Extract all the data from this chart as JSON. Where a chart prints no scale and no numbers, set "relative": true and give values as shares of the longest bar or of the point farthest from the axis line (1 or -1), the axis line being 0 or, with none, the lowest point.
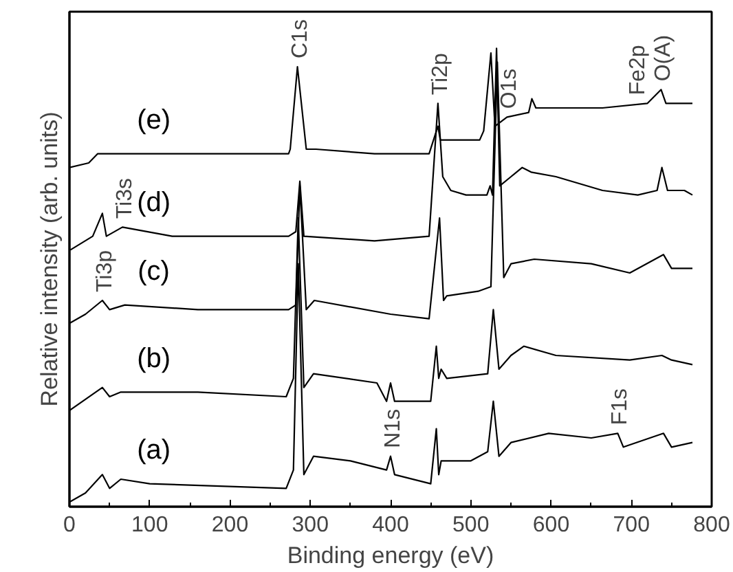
{
  "chart_data": {
    "type": "line",
    "relative": true,
    "xlabel": "Binding energy (eV)",
    "ylabel": "Relative intensity (arb. units)",
    "xlim": [
      0,
      800
    ],
    "xticks": [
      0,
      100,
      200,
      300,
      400,
      500,
      600,
      700,
      800
    ],
    "grid": false,
    "marker": "none",
    "line_style": "solid",
    "series": [
      {
        "name": "(a)",
        "color": "#000000",
        "x": [
          0,
          20,
          41,
          50,
          64,
          100,
          270,
          279,
          285,
          292,
          304,
          350,
          395,
          400,
          405,
          450,
          457,
          460,
          463,
          468,
          500,
          521,
          528,
          535,
          550,
          597,
          650,
          683,
          690,
          740,
          750,
          776
        ],
        "values": [
          0.01,
          0.03,
          0.07,
          0.04,
          0.06,
          0.05,
          0.04,
          0.08,
          0.53,
          0.07,
          0.11,
          0.1,
          0.08,
          0.11,
          0.07,
          0.05,
          0.17,
          0.07,
          0.1,
          0.1,
          0.1,
          0.12,
          0.23,
          0.11,
          0.14,
          0.16,
          0.15,
          0.16,
          0.13,
          0.16,
          0.13,
          0.14
        ]
      },
      {
        "name": "(b)",
        "color": "#000000",
        "x": [
          0,
          41,
          50,
          64,
          160,
          270,
          279,
          285,
          292,
          304,
          383,
          395,
          400,
          405,
          450,
          457,
          460,
          463,
          470,
          521,
          528,
          535,
          550,
          566,
          606,
          698,
          738,
          750,
          776
        ],
        "values": [
          0.21,
          0.26,
          0.24,
          0.25,
          0.25,
          0.24,
          0.28,
          0.63,
          0.26,
          0.29,
          0.27,
          0.23,
          0.27,
          0.23,
          0.23,
          0.35,
          0.28,
          0.3,
          0.28,
          0.29,
          0.43,
          0.3,
          0.33,
          0.35,
          0.33,
          0.32,
          0.33,
          0.32,
          0.31
        ]
      },
      {
        "name": "(c)",
        "color": "#000000",
        "x": [
          0,
          20,
          41,
          50,
          69,
          160,
          273,
          282,
          287,
          295,
          305,
          400,
          448,
          461,
          466,
          470,
          509,
          525,
          533,
          541,
          550,
          579,
          650,
          698,
          740,
          750,
          776
        ],
        "values": [
          0.4,
          0.42,
          0.45,
          0.43,
          0.44,
          0.43,
          0.43,
          0.44,
          0.7,
          0.43,
          0.45,
          0.42,
          0.41,
          0.63,
          0.45,
          0.46,
          0.47,
          0.48,
          0.97,
          0.5,
          0.53,
          0.54,
          0.53,
          0.51,
          0.55,
          0.52,
          0.52
        ]
      },
      {
        "name": "(d)",
        "color": "#000000",
        "x": [
          1,
          29,
          41,
          46,
          66,
          128,
          273,
          282,
          287,
          292,
          380,
          448,
          459,
          465,
          475,
          494,
          520,
          524,
          527,
          532,
          536,
          550,
          564,
          575,
          606,
          664,
          708,
          732,
          738,
          745,
          766,
          776
        ],
        "values": [
          0.56,
          0.59,
          0.64,
          0.59,
          0.61,
          0.59,
          0.59,
          0.6,
          0.71,
          0.59,
          0.58,
          0.59,
          0.88,
          0.72,
          0.69,
          0.68,
          0.68,
          0.7,
          0.68,
          1.0,
          0.7,
          0.72,
          0.74,
          0.73,
          0.72,
          0.69,
          0.68,
          0.69,
          0.74,
          0.69,
          0.69,
          0.68
        ]
      },
      {
        "name": "(e)",
        "color": "#000000",
        "x": [
          0,
          24,
          35,
          46,
          75,
          216,
          273,
          275,
          284,
          295,
          307,
          380,
          448,
          459,
          462,
          470,
          511,
          516,
          525,
          530,
          545,
          572,
          576,
          581,
          664,
          720,
          737,
          743,
          771,
          776
        ],
        "values": [
          0.74,
          0.75,
          0.77,
          0.77,
          0.77,
          0.77,
          0.77,
          0.78,
          0.96,
          0.78,
          0.78,
          0.77,
          0.77,
          0.83,
          0.8,
          0.8,
          0.8,
          0.82,
          0.99,
          0.83,
          0.85,
          0.86,
          0.89,
          0.87,
          0.87,
          0.88,
          0.91,
          0.88,
          0.88,
          0.88
        ]
      }
    ],
    "annotations": [
      {
        "text": "Ti3p",
        "x": 41,
        "y": 0.45
      },
      {
        "text": "Ti3s",
        "x": 66,
        "y": 0.61
      },
      {
        "text": "C1s",
        "x": 284,
        "y": 0.96
      },
      {
        "text": "N1s",
        "x": 400,
        "y": 0.11
      },
      {
        "text": "Ti2p",
        "x": 459,
        "y": 0.88
      },
      {
        "text": "O1s",
        "x": 545,
        "y": 0.85
      },
      {
        "text": "F1s",
        "x": 683,
        "y": 0.16
      },
      {
        "text": "Fe2p",
        "x": 705,
        "y": 0.88
      },
      {
        "text": "O(A)",
        "x": 737,
        "y": 0.91
      }
    ]
  }
}
